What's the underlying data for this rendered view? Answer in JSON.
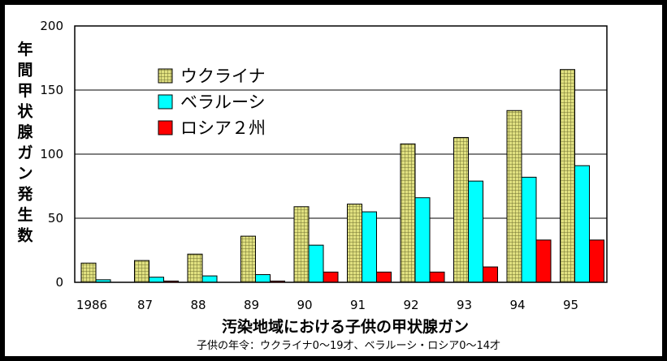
{
  "chart_data": {
    "type": "bar",
    "title": "汚染地域における子供の甲状腺ガン",
    "subtitle": "子供の年令：ウクライナ0～19才、ベラルーシ・ロシア0～14才",
    "xlabel": "",
    "ylabel": "年間甲状腺ガン発生数",
    "ylim": [
      0,
      200
    ],
    "yticks": [
      0,
      50,
      100,
      150,
      200
    ],
    "grid": true,
    "legend_position": "top-left",
    "categories": [
      "1986",
      "87",
      "88",
      "89",
      "90",
      "91",
      "92",
      "93",
      "94",
      "95"
    ],
    "series": [
      {
        "name": "ウクライナ",
        "color": "#e0e080",
        "pattern": "grid",
        "values": [
          15,
          17,
          22,
          36,
          59,
          61,
          108,
          113,
          134,
          166
        ]
      },
      {
        "name": "ベラルーシ",
        "color": "#00ffff",
        "values": [
          2,
          4,
          5,
          6,
          29,
          55,
          66,
          79,
          82,
          91
        ]
      },
      {
        "name": "ロシア２州",
        "color": "#ff0000",
        "values": [
          0,
          1,
          0,
          1,
          8,
          8,
          8,
          12,
          33,
          33
        ]
      }
    ]
  }
}
